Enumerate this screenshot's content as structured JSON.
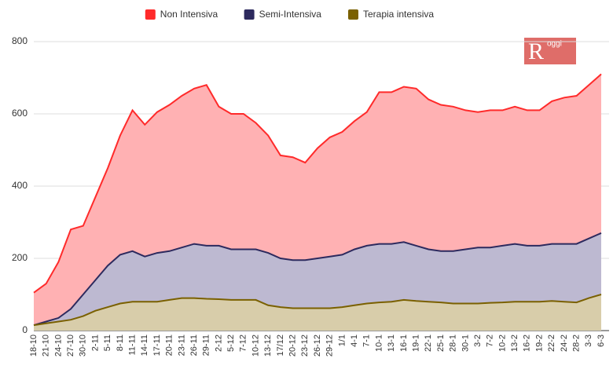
{
  "chart_data": {
    "type": "area",
    "logo": {
      "big": "R",
      "small": "oggi"
    },
    "categories": [
      "18-10",
      "21-10",
      "24-10",
      "27-10",
      "30-10",
      "2-11",
      "5-11",
      "8-11",
      "11-11",
      "14-11",
      "17-11",
      "20-11",
      "23-11",
      "26-11",
      "29-11",
      "2-12",
      "5-12",
      "7-12",
      "10-12",
      "13-12",
      "17/12",
      "20-12",
      "23-12",
      "26-12",
      "29-12",
      "1/1",
      "4-1",
      "7-1",
      "10-1",
      "13-1",
      "16-1",
      "19-1",
      "22-1",
      "25-1",
      "28-1",
      "30-1",
      "3-2",
      "7-2",
      "10-2",
      "13-2",
      "16-2",
      "19-2",
      "22-2",
      "24-2",
      "28-2",
      "3-3",
      "6-3"
    ],
    "series": [
      {
        "name": "Non Intensiva",
        "color": "#ff2a2a",
        "fill": "#ffb1b3",
        "values": [
          105,
          130,
          190,
          280,
          290,
          370,
          450,
          540,
          610,
          570,
          605,
          625,
          650,
          670,
          680,
          620,
          600,
          600,
          575,
          540,
          485,
          480,
          465,
          505,
          535,
          550,
          580,
          605,
          660,
          660,
          675,
          670,
          640,
          625,
          620,
          610,
          605,
          610,
          610,
          620,
          610,
          610,
          635,
          645,
          650,
          680,
          710
        ]
      },
      {
        "name": "Semi-Intensiva",
        "color": "#2d2a5e",
        "fill": "#bdb9d1",
        "values": [
          15,
          25,
          35,
          60,
          100,
          140,
          180,
          210,
          220,
          205,
          215,
          220,
          230,
          240,
          235,
          235,
          225,
          225,
          225,
          215,
          200,
          195,
          195,
          200,
          205,
          210,
          225,
          235,
          240,
          240,
          245,
          235,
          225,
          220,
          220,
          225,
          230,
          230,
          235,
          240,
          235,
          235,
          240,
          240,
          240,
          255,
          270
        ]
      },
      {
        "name": "Terapia intensiva",
        "color": "#7a6000",
        "fill": "#d8cdaa",
        "values": [
          15,
          20,
          25,
          30,
          40,
          55,
          65,
          75,
          80,
          80,
          80,
          85,
          90,
          90,
          88,
          87,
          85,
          85,
          85,
          70,
          65,
          62,
          62,
          62,
          62,
          65,
          70,
          75,
          78,
          80,
          85,
          82,
          80,
          78,
          75,
          75,
          75,
          77,
          78,
          80,
          80,
          80,
          82,
          80,
          78,
          90,
          100
        ]
      }
    ],
    "ylim": [
      0,
      800
    ],
    "yticks": [
      0,
      200,
      400,
      600,
      800
    ],
    "grid": true,
    "legend": "top"
  }
}
